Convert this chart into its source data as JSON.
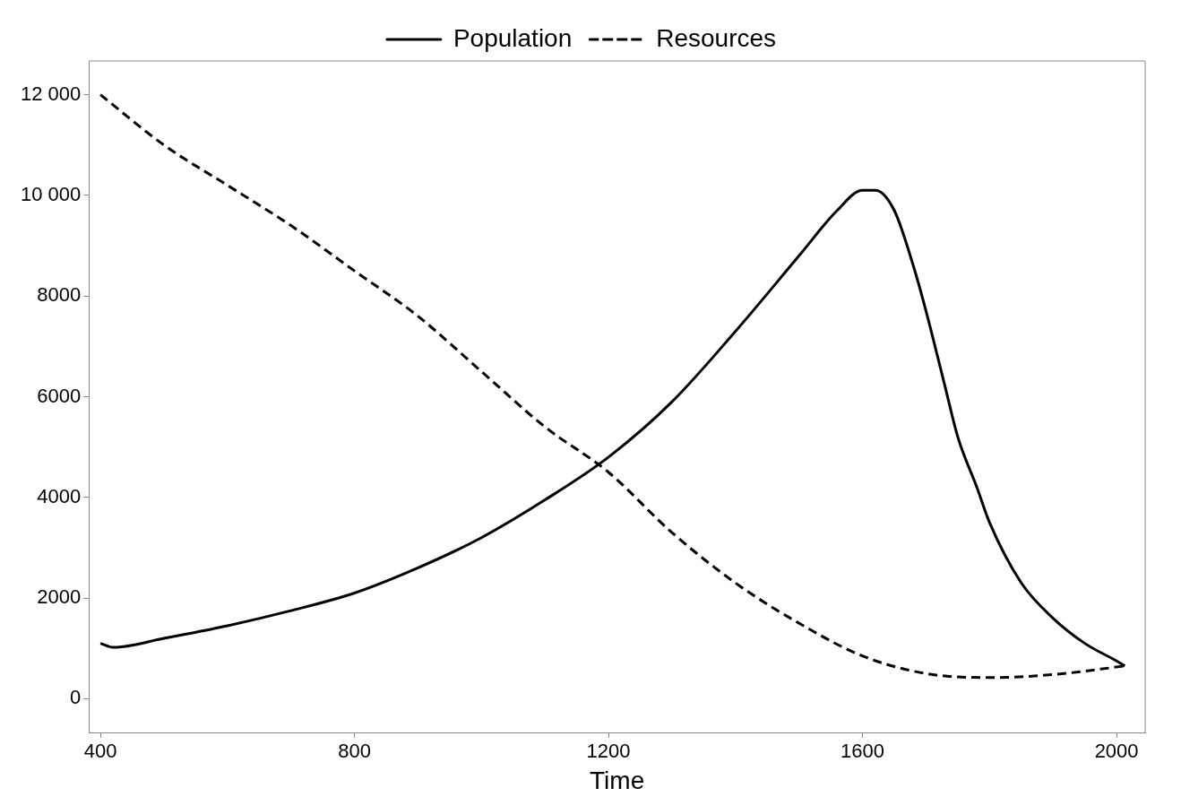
{
  "chart_data": {
    "type": "line",
    "xlabel": "Time",
    "legend": "top",
    "grid": false,
    "marker": "none",
    "xlim": [
      382,
      2045
    ],
    "xticks": [
      400,
      800,
      1200,
      1600,
      2000
    ],
    "ylim": [
      -670,
      12670
    ],
    "yticks": [
      0,
      2000,
      4000,
      6000,
      8000,
      {
        "value": 10000,
        "label": "10 000"
      },
      {
        "value": 12000,
        "label": "12 000"
      }
    ],
    "series": [
      {
        "name": "Population",
        "color": "#000000",
        "line_style": "solid",
        "x": [
          400,
          420,
          500,
          600,
          700,
          800,
          900,
          1000,
          1100,
          1200,
          1300,
          1400,
          1500,
          1560,
          1600,
          1620,
          1650,
          1680,
          1700,
          1730,
          1750,
          1780,
          1800,
          1850,
          1900,
          1950,
          2000,
          2013
        ],
        "values": [
          1100,
          1020,
          1200,
          1450,
          1750,
          2100,
          2600,
          3200,
          3950,
          4800,
          5900,
          7300,
          8800,
          9700,
          10100,
          10100,
          9700,
          8600,
          7700,
          6200,
          5200,
          4200,
          3500,
          2300,
          1600,
          1100,
          750,
          650
        ]
      },
      {
        "name": "Resources",
        "color": "#000000",
        "line_style": "dashed",
        "x": [
          400,
          500,
          600,
          700,
          800,
          900,
          1000,
          1100,
          1200,
          1300,
          1400,
          1500,
          1600,
          1700,
          1800,
          1900,
          2013
        ],
        "values": [
          12000,
          11000,
          10200,
          9400,
          8500,
          7600,
          6500,
          5400,
          4500,
          3300,
          2300,
          1500,
          850,
          500,
          420,
          480,
          650
        ]
      }
    ]
  }
}
